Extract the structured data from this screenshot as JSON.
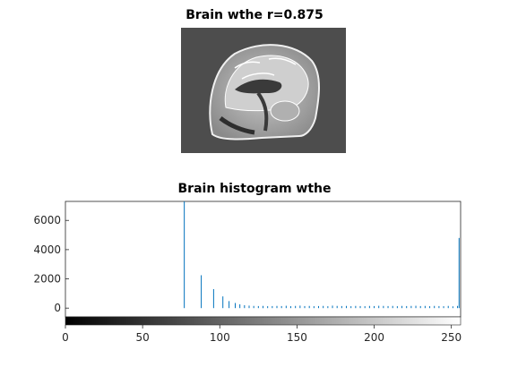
{
  "image_panel": {
    "title": "Brain wthe r=0.875"
  },
  "chart_data": {
    "type": "bar",
    "title": "Brain histogram wthe",
    "xlabel": "",
    "ylabel": "",
    "xlim": [
      0,
      256
    ],
    "ylim": [
      -600,
      7300
    ],
    "x_ticks": [
      0,
      50,
      100,
      150,
      200,
      250
    ],
    "y_ticks": [
      0,
      2000,
      4000,
      6000
    ],
    "grid": false,
    "series_color": "#0072bd",
    "colorbar": "grayscale 0-255",
    "x": [
      77,
      88,
      96,
      102,
      106,
      110,
      113,
      116,
      119,
      122,
      125,
      128,
      131,
      134,
      137,
      140,
      143,
      146,
      149,
      152,
      155,
      158,
      161,
      164,
      167,
      170,
      173,
      176,
      179,
      182,
      185,
      188,
      191,
      194,
      197,
      200,
      203,
      206,
      209,
      212,
      215,
      218,
      221,
      224,
      227,
      230,
      233,
      236,
      239,
      242,
      245,
      248,
      251,
      254,
      255
    ],
    "values": [
      7300,
      2250,
      1300,
      800,
      480,
      350,
      260,
      200,
      170,
      150,
      140,
      150,
      130,
      140,
      150,
      140,
      160,
      130,
      150,
      170,
      140,
      150,
      130,
      140,
      150,
      130,
      170,
      150,
      140,
      150,
      130,
      150,
      140,
      130,
      150,
      140,
      160,
      150,
      140,
      150,
      130,
      150,
      140,
      150,
      160,
      140,
      150,
      130,
      150,
      140,
      130,
      150,
      120,
      150,
      4800
    ]
  }
}
